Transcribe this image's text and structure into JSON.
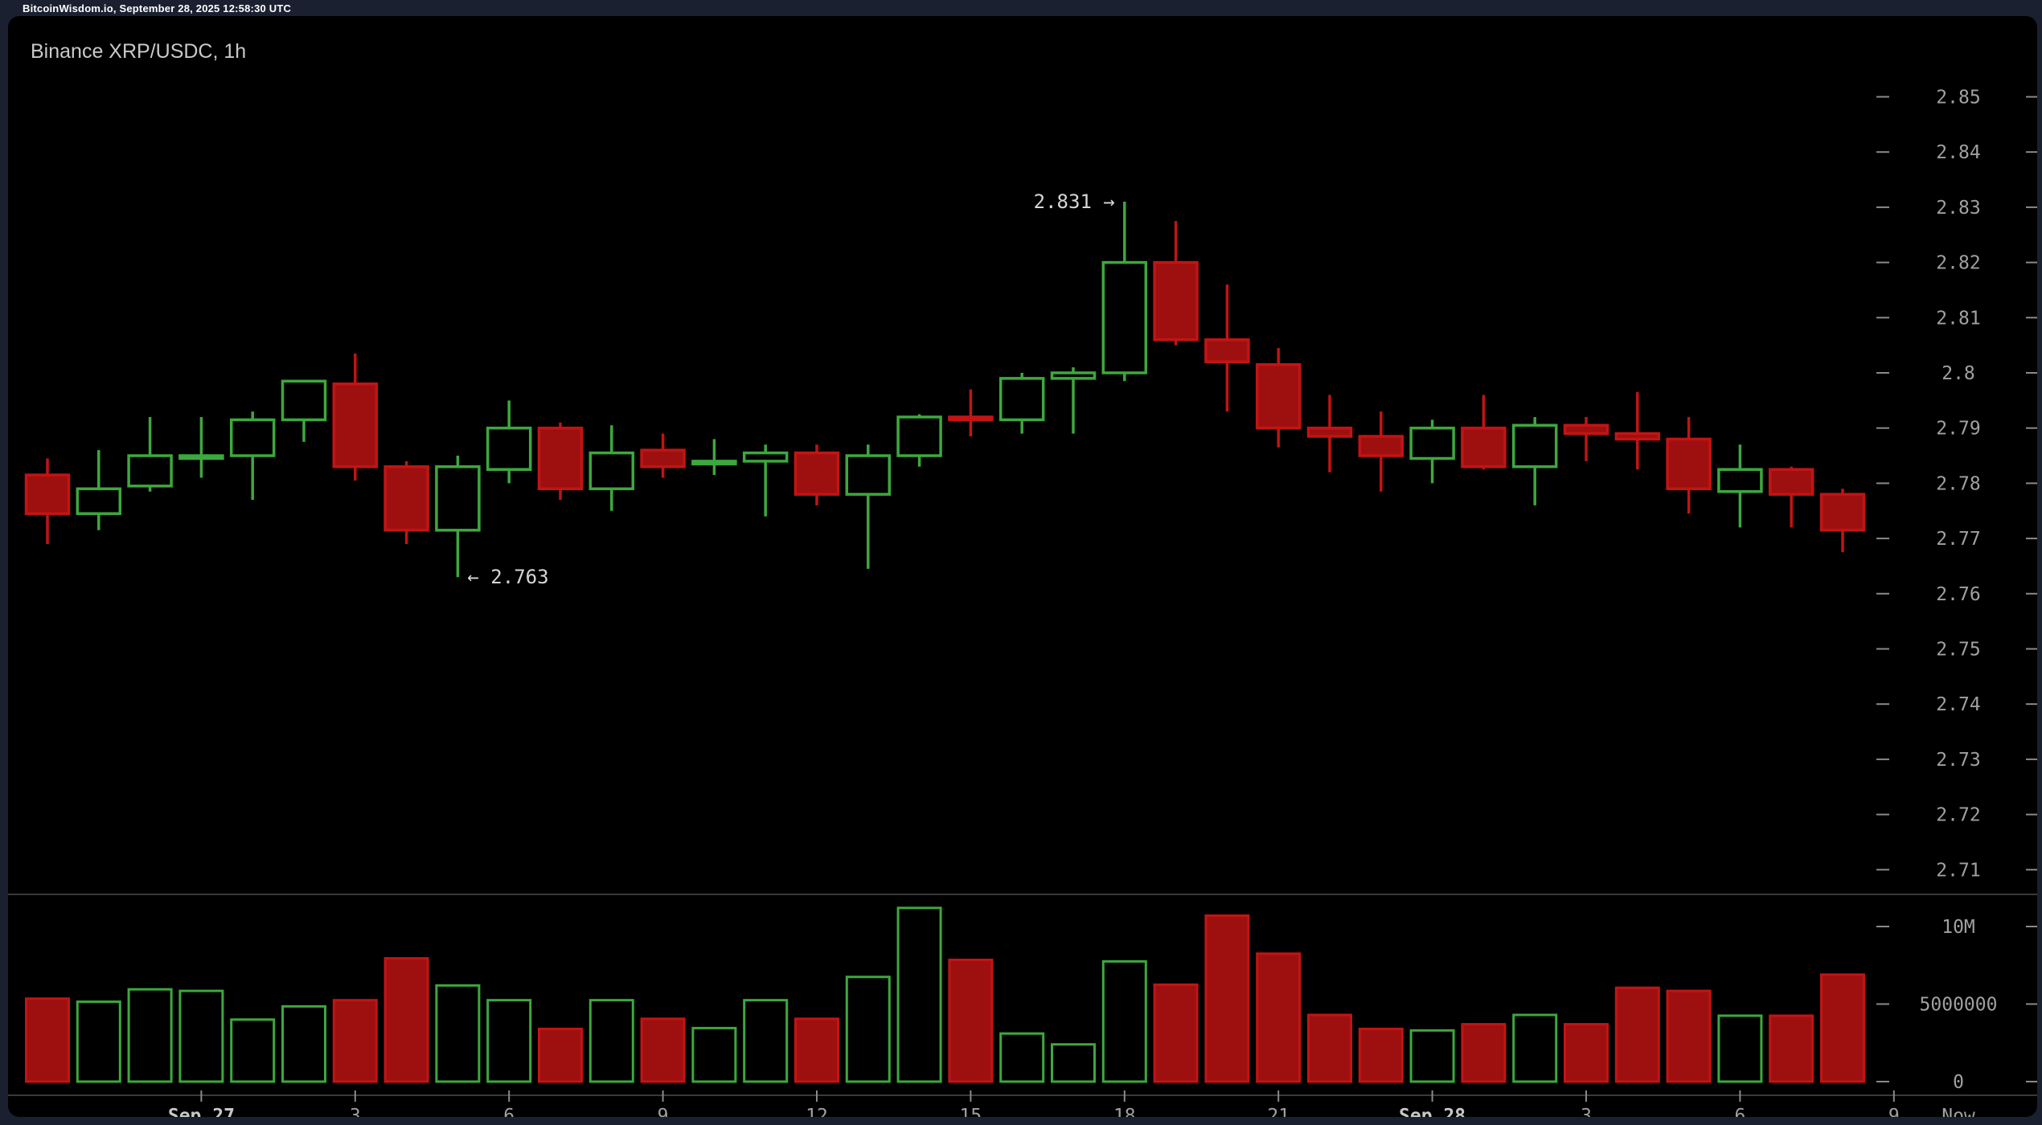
{
  "topbar": {
    "status_text": "BitcoinWisdom.io, September 28, 2025 12:58:30 UTC"
  },
  "header": {
    "title": "Binance XRP/USDC, 1h"
  },
  "annotations": [
    {
      "text": "2.831 →",
      "candle": 21,
      "price": 2.831,
      "side": "left"
    },
    {
      "text": "← 2.763",
      "candle": 8,
      "price": 2.763,
      "side": "right"
    }
  ],
  "colors": {
    "background_outer": "#1a2030",
    "background_panel": "#000000",
    "up_stroke": "#3da83d",
    "down_fill": "#9e1010",
    "down_stroke": "#c21414",
    "axis_text": "#a0a0a0",
    "axis_text_bold": "#c8c8c8",
    "tick": "#8a8a8a",
    "divider": "#3a3a3a",
    "annotation_text": "#d6d6d6",
    "title_text": "#c9c9c9"
  },
  "chart_data": {
    "type": "candlestick_with_volume",
    "title": "Binance XRP/USDC, 1h",
    "interval": "1h",
    "price_axis": {
      "labels": [
        "2.85",
        "2.84",
        "2.83",
        "2.82",
        "2.81",
        "2.8",
        "2.79",
        "2.78",
        "2.77",
        "2.76",
        "2.75",
        "2.74",
        "2.73",
        "2.72",
        "2.71"
      ],
      "values": [
        2.85,
        2.84,
        2.83,
        2.82,
        2.81,
        2.8,
        2.79,
        2.78,
        2.77,
        2.76,
        2.75,
        2.74,
        2.73,
        2.72,
        2.71
      ],
      "range": [
        2.705,
        2.855
      ],
      "grid": false,
      "position": "right"
    },
    "volume_axis": {
      "labels": [
        "10M",
        "5000000",
        "0"
      ],
      "values": [
        10000000,
        5000000,
        0
      ],
      "range": [
        0,
        12500000
      ]
    },
    "time_axis": {
      "ticks": [
        {
          "label": "Sep 27",
          "index": 3,
          "bold": true
        },
        {
          "label": "3",
          "index": 6,
          "bold": false
        },
        {
          "label": "6",
          "index": 9,
          "bold": false
        },
        {
          "label": "9",
          "index": 12,
          "bold": false
        },
        {
          "label": "12",
          "index": 15,
          "bold": false
        },
        {
          "label": "15",
          "index": 18,
          "bold": false
        },
        {
          "label": "18",
          "index": 21,
          "bold": false
        },
        {
          "label": "21",
          "index": 24,
          "bold": false
        },
        {
          "label": "Sep 28",
          "index": 27,
          "bold": true
        },
        {
          "label": "3",
          "index": 30,
          "bold": false
        },
        {
          "label": "6",
          "index": 33,
          "bold": false
        },
        {
          "label": "9",
          "index": 36,
          "bold": false
        }
      ],
      "now_label": "Now"
    },
    "candles": [
      {
        "time": "2025-09-26 21:00",
        "o": 2.7815,
        "h": 2.7845,
        "l": 2.769,
        "c": 2.7745,
        "v": 5350000
      },
      {
        "time": "2025-09-26 22:00",
        "o": 2.7745,
        "h": 2.786,
        "l": 2.7715,
        "c": 2.779,
        "v": 5150000
      },
      {
        "time": "2025-09-26 23:00",
        "o": 2.7795,
        "h": 2.792,
        "l": 2.7785,
        "c": 2.785,
        "v": 5950000
      },
      {
        "time": "2025-09-27 00:00",
        "o": 2.785,
        "h": 2.792,
        "l": 2.781,
        "c": 2.785,
        "v": 5850000
      },
      {
        "time": "2025-09-27 01:00",
        "o": 2.785,
        "h": 2.793,
        "l": 2.777,
        "c": 2.7915,
        "v": 4000000
      },
      {
        "time": "2025-09-27 02:00",
        "o": 2.7915,
        "h": 2.7985,
        "l": 2.7875,
        "c": 2.7985,
        "v": 4850000
      },
      {
        "time": "2025-09-27 03:00",
        "o": 2.798,
        "h": 2.8035,
        "l": 2.7805,
        "c": 2.783,
        "v": 5250000
      },
      {
        "time": "2025-09-27 04:00",
        "o": 2.783,
        "h": 2.784,
        "l": 2.769,
        "c": 2.7715,
        "v": 7950000
      },
      {
        "time": "2025-09-27 05:00",
        "o": 2.7715,
        "h": 2.785,
        "l": 2.763,
        "c": 2.783,
        "v": 6200000
      },
      {
        "time": "2025-09-27 06:00",
        "o": 2.7825,
        "h": 2.795,
        "l": 2.78,
        "c": 2.79,
        "v": 5250000
      },
      {
        "time": "2025-09-27 07:00",
        "o": 2.79,
        "h": 2.791,
        "l": 2.777,
        "c": 2.779,
        "v": 3400000
      },
      {
        "time": "2025-09-27 08:00",
        "o": 2.779,
        "h": 2.7905,
        "l": 2.775,
        "c": 2.7855,
        "v": 5250000
      },
      {
        "time": "2025-09-27 09:00",
        "o": 2.786,
        "h": 2.789,
        "l": 2.781,
        "c": 2.783,
        "v": 4050000
      },
      {
        "time": "2025-09-27 10:00",
        "o": 2.7835,
        "h": 2.788,
        "l": 2.7815,
        "c": 2.784,
        "v": 3450000
      },
      {
        "time": "2025-09-27 11:00",
        "o": 2.784,
        "h": 2.787,
        "l": 2.774,
        "c": 2.7855,
        "v": 5250000
      },
      {
        "time": "2025-09-27 12:00",
        "o": 2.7855,
        "h": 2.787,
        "l": 2.776,
        "c": 2.778,
        "v": 4050000
      },
      {
        "time": "2025-09-27 13:00",
        "o": 2.778,
        "h": 2.787,
        "l": 2.7645,
        "c": 2.785,
        "v": 6750000
      },
      {
        "time": "2025-09-27 14:00",
        "o": 2.785,
        "h": 2.7925,
        "l": 2.783,
        "c": 2.792,
        "v": 11200000
      },
      {
        "time": "2025-09-27 15:00",
        "o": 2.792,
        "h": 2.797,
        "l": 2.7885,
        "c": 2.7915,
        "v": 7850000
      },
      {
        "time": "2025-09-27 16:00",
        "o": 2.7915,
        "h": 2.8,
        "l": 2.789,
        "c": 2.799,
        "v": 3100000
      },
      {
        "time": "2025-09-27 17:00",
        "o": 2.799,
        "h": 2.801,
        "l": 2.789,
        "c": 2.8,
        "v": 2400000
      },
      {
        "time": "2025-09-27 18:00",
        "o": 2.8,
        "h": 2.831,
        "l": 2.7985,
        "c": 2.82,
        "v": 7750000
      },
      {
        "time": "2025-09-27 19:00",
        "o": 2.82,
        "h": 2.8275,
        "l": 2.805,
        "c": 2.806,
        "v": 6250000
      },
      {
        "time": "2025-09-27 20:00",
        "o": 2.806,
        "h": 2.816,
        "l": 2.793,
        "c": 2.802,
        "v": 10700000
      },
      {
        "time": "2025-09-27 21:00",
        "o": 2.8015,
        "h": 2.8045,
        "l": 2.7865,
        "c": 2.79,
        "v": 8250000
      },
      {
        "time": "2025-09-27 22:00",
        "o": 2.79,
        "h": 2.796,
        "l": 2.782,
        "c": 2.7885,
        "v": 4300000
      },
      {
        "time": "2025-09-27 23:00",
        "o": 2.7885,
        "h": 2.793,
        "l": 2.7785,
        "c": 2.785,
        "v": 3400000
      },
      {
        "time": "2025-09-28 00:00",
        "o": 2.7845,
        "h": 2.7915,
        "l": 2.78,
        "c": 2.79,
        "v": 3300000
      },
      {
        "time": "2025-09-28 01:00",
        "o": 2.79,
        "h": 2.796,
        "l": 2.7825,
        "c": 2.783,
        "v": 3700000
      },
      {
        "time": "2025-09-28 02:00",
        "o": 2.783,
        "h": 2.792,
        "l": 2.776,
        "c": 2.7905,
        "v": 4300000
      },
      {
        "time": "2025-09-28 03:00",
        "o": 2.7905,
        "h": 2.792,
        "l": 2.784,
        "c": 2.789,
        "v": 3700000
      },
      {
        "time": "2025-09-28 04:00",
        "o": 2.789,
        "h": 2.7965,
        "l": 2.7825,
        "c": 2.788,
        "v": 6050000
      },
      {
        "time": "2025-09-28 05:00",
        "o": 2.788,
        "h": 2.792,
        "l": 2.7745,
        "c": 2.779,
        "v": 5850000
      },
      {
        "time": "2025-09-28 06:00",
        "o": 2.7785,
        "h": 2.787,
        "l": 2.772,
        "c": 2.7825,
        "v": 4250000
      },
      {
        "time": "2025-09-28 07:00",
        "o": 2.7825,
        "h": 2.783,
        "l": 2.772,
        "c": 2.778,
        "v": 4250000
      },
      {
        "time": "2025-09-28 08:00",
        "o": 2.778,
        "h": 2.779,
        "l": 2.7675,
        "c": 2.7715,
        "v": 6900000
      }
    ]
  }
}
